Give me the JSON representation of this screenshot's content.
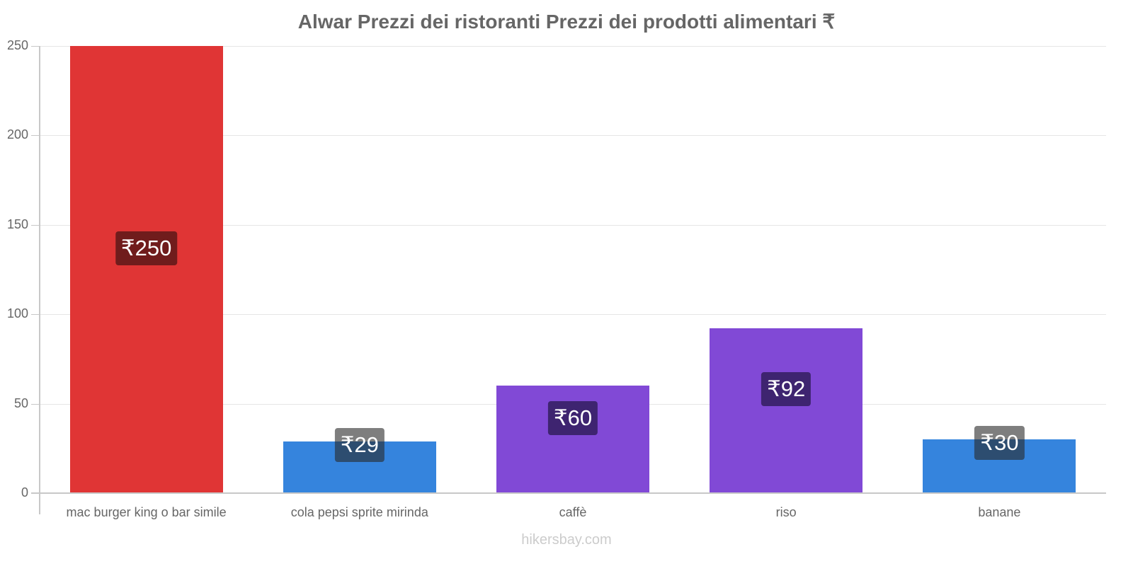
{
  "title": "Alwar Prezzi dei ristoranti Prezzi dei prodotti alimentari ₹",
  "footer": "hikersbay.com",
  "chart_data": {
    "type": "bar",
    "title": "Alwar Prezzi dei ristoranti Prezzi dei prodotti alimentari ₹",
    "xlabel": "",
    "ylabel": "",
    "ylim": [
      0,
      250
    ],
    "yticks": [
      0,
      50,
      100,
      150,
      200,
      250
    ],
    "grid": true,
    "legend": null,
    "categories": [
      "mac burger king o bar simile",
      "cola pepsi sprite mirinda",
      "caffè",
      "riso",
      "banane"
    ],
    "values": [
      250,
      29,
      60,
      92,
      30
    ],
    "value_labels": [
      "₹250",
      "₹29",
      "₹60",
      "₹92",
      "₹30"
    ],
    "bar_colors": [
      "#e03535",
      "#3584dd",
      "#8149d6",
      "#8149d6",
      "#3584dd"
    ],
    "label_bg_colors": [
      "#701c1c",
      "#1c406d",
      "#3e2470",
      "#3e2470",
      "#1c406d"
    ]
  }
}
